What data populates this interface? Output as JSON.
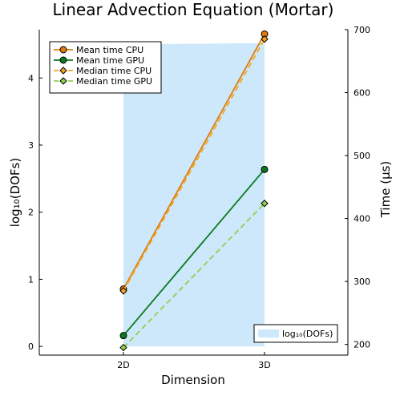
{
  "chart_data": {
    "type": "line",
    "title": "Linear Advection Equation (Mortar)",
    "xlabel": "Dimension",
    "ylabel_left": "log₁₀(DOFs)",
    "ylabel_right": "Time (µs)",
    "categories": [
      "2D",
      "3D"
    ],
    "left_axis": {
      "ylim": [
        -0.13,
        4.72
      ],
      "ticks": [
        0,
        1,
        2,
        3,
        4
      ]
    },
    "right_axis": {
      "ylim": [
        183,
        700
      ],
      "ticks": [
        200,
        300,
        400,
        500,
        600,
        700
      ]
    },
    "area": {
      "name": "log₁₀(DOFs)",
      "axis": "left",
      "color": "#cce8fa",
      "values": [
        4.5,
        4.52
      ]
    },
    "series": [
      {
        "name": "Mean time CPU",
        "axis": "right",
        "color": "#e07b0a",
        "marker": "circle",
        "dash": "solid",
        "values": [
          288,
          693
        ]
      },
      {
        "name": "Mean time GPU",
        "axis": "right",
        "color": "#0b7a1f",
        "marker": "circle",
        "dash": "solid",
        "values": [
          214,
          478
        ]
      },
      {
        "name": "Median time CPU",
        "axis": "right",
        "color": "#f5a623",
        "marker": "diamond",
        "dash": "dashed",
        "values": [
          285,
          685
        ]
      },
      {
        "name": "Median time GPU",
        "axis": "right",
        "color": "#8fd14f",
        "marker": "diamond",
        "dash": "dashed",
        "values": [
          195,
          424
        ]
      }
    ],
    "legend_series": "top-left",
    "legend_area": "bottom-right",
    "grid": false
  }
}
